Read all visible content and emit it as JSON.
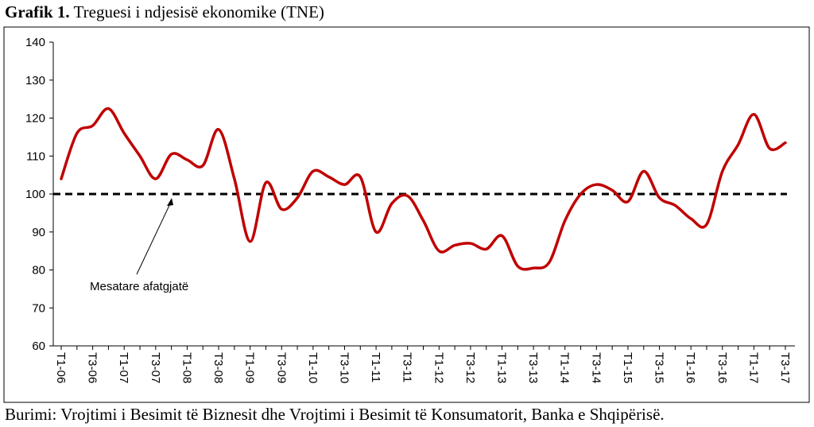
{
  "chart_data": {
    "type": "line",
    "title_label": "Grafik 1.",
    "title": "Treguesi i ndjesisë ekonomike (TNE)",
    "source": "Burimi: Vrojtimi i Besimit të Biznesit dhe Vrojtimi i Besimit të Konsumatorit, Banka e Shqipërisë.",
    "categories": [
      "T1-06",
      null,
      "T3-06",
      null,
      "T1-07",
      null,
      "T3-07",
      null,
      "T1-08",
      null,
      "T3-08",
      null,
      "T1-09",
      null,
      "T3-09",
      null,
      "T1-10",
      null,
      "T3-10",
      null,
      "T1-11",
      null,
      "T3-11",
      null,
      "T1-12",
      null,
      "T3-12",
      null,
      "T1-13",
      null,
      "T3-13",
      null,
      "T1-14",
      null,
      "T3-14",
      null,
      "T1-15",
      null,
      "T3-15",
      null,
      "T1-16",
      null,
      "T3-16",
      null,
      "T1-17",
      null,
      "T3-17"
    ],
    "values": [
      104,
      116,
      118,
      122.5,
      116,
      110,
      104,
      110.5,
      109,
      107.5,
      117,
      104,
      87.5,
      103,
      96,
      99,
      106,
      104.5,
      102.5,
      104.5,
      90,
      97.5,
      99.5,
      93,
      85,
      86.5,
      87,
      85.5,
      89,
      81,
      80.5,
      82,
      93,
      100,
      102.5,
      101,
      98,
      106,
      99,
      97,
      93.5,
      92,
      106,
      113,
      121,
      112,
      113.5
    ],
    "color": "#c00000",
    "reference_line": {
      "value": 100,
      "label": "Mesatare afatgjatë"
    },
    "ylim": [
      60,
      140
    ],
    "yticks": [
      60,
      70,
      80,
      90,
      100,
      110,
      120,
      130,
      140
    ],
    "grid": false
  }
}
